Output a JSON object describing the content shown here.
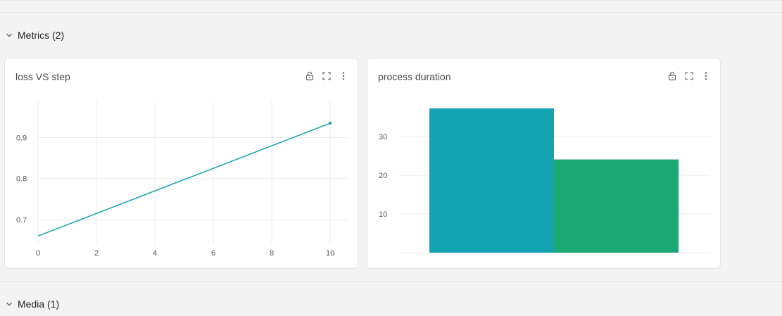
{
  "sections": {
    "metrics": {
      "label": "Metrics (2)"
    },
    "media": {
      "label": "Media (1)"
    }
  },
  "icons": {
    "chevron": "chevron-down-icon",
    "lock": "lock-open-icon",
    "expand": "expand-icon",
    "more": "more-vertical-icon"
  },
  "colors": {
    "line": "#13a3b3",
    "bar_1": "#13a3b3",
    "bar_2": "#1aa874",
    "grid": "#ececec"
  },
  "cards": {
    "loss": {
      "title": "loss VS step"
    },
    "duration": {
      "title": "process duration"
    }
  },
  "chart_data": [
    {
      "type": "line",
      "title": "loss VS step",
      "xlabel": "",
      "ylabel": "",
      "x": [
        0,
        10
      ],
      "series": [
        {
          "values": [
            0.66,
            0.935
          ]
        }
      ],
      "xticks": [
        "0",
        "2",
        "4",
        "6",
        "8",
        "10"
      ],
      "yticks": [
        "0.7",
        "0.8",
        "0.9"
      ],
      "xlim": [
        0,
        10.6
      ],
      "ylim": [
        0.64,
        0.99
      ],
      "grid": true
    },
    {
      "type": "bar",
      "title": "process duration",
      "xlabel": "",
      "ylabel": "",
      "categories": [
        "",
        ""
      ],
      "values": [
        37.3,
        24.1
      ],
      "yticks": [
        "10",
        "20",
        "30"
      ],
      "ylim": [
        0,
        37.3
      ],
      "grid": true
    }
  ]
}
